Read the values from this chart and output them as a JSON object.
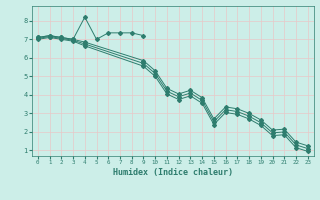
{
  "xlabel": "Humidex (Indice chaleur)",
  "bg_color": "#cceee8",
  "grid_color": "#e8c8c8",
  "line_color": "#2e7d6e",
  "xlim": [
    -0.5,
    23.5
  ],
  "ylim": [
    0.7,
    8.8
  ],
  "xticks": [
    0,
    1,
    2,
    3,
    4,
    5,
    6,
    7,
    8,
    9,
    10,
    11,
    12,
    13,
    14,
    15,
    16,
    17,
    18,
    19,
    20,
    21,
    22,
    23
  ],
  "yticks": [
    1,
    2,
    3,
    4,
    5,
    6,
    7,
    8
  ],
  "series": {
    "line1": {
      "x": [
        0,
        1,
        2,
        3,
        4,
        5,
        6,
        7,
        8,
        9
      ],
      "y": [
        7.1,
        7.2,
        7.1,
        7.0,
        8.2,
        7.0,
        7.35,
        7.35,
        7.35,
        7.2
      ]
    },
    "line2_a": {
      "x": [
        0,
        1,
        2,
        3,
        4,
        9,
        10,
        11,
        12,
        13,
        14,
        15,
        16,
        17,
        18,
        19,
        20,
        21,
        22,
        23
      ],
      "y": [
        7.1,
        7.2,
        7.1,
        7.0,
        6.85,
        5.85,
        5.3,
        4.35,
        4.05,
        4.25,
        3.85,
        2.7,
        3.35,
        3.25,
        3.0,
        2.65,
        2.1,
        2.15,
        1.45,
        1.25
      ]
    },
    "line2_b": {
      "x": [
        0,
        1,
        2,
        3,
        4,
        9,
        10,
        11,
        12,
        13,
        14,
        15,
        16,
        17,
        18,
        19,
        20,
        21,
        22,
        23
      ],
      "y": [
        7.05,
        7.15,
        7.05,
        6.95,
        6.75,
        5.7,
        5.15,
        4.2,
        3.9,
        4.1,
        3.7,
        2.55,
        3.2,
        3.1,
        2.85,
        2.5,
        1.95,
        2.0,
        1.3,
        1.1
      ]
    },
    "line2_c": {
      "x": [
        0,
        1,
        2,
        3,
        4,
        9,
        10,
        11,
        12,
        13,
        14,
        15,
        16,
        17,
        18,
        19,
        20,
        21,
        22,
        23
      ],
      "y": [
        7.0,
        7.1,
        7.0,
        6.9,
        6.65,
        5.55,
        5.0,
        4.05,
        3.75,
        3.95,
        3.55,
        2.4,
        3.05,
        2.95,
        2.7,
        2.35,
        1.8,
        1.85,
        1.15,
        0.95
      ]
    }
  }
}
